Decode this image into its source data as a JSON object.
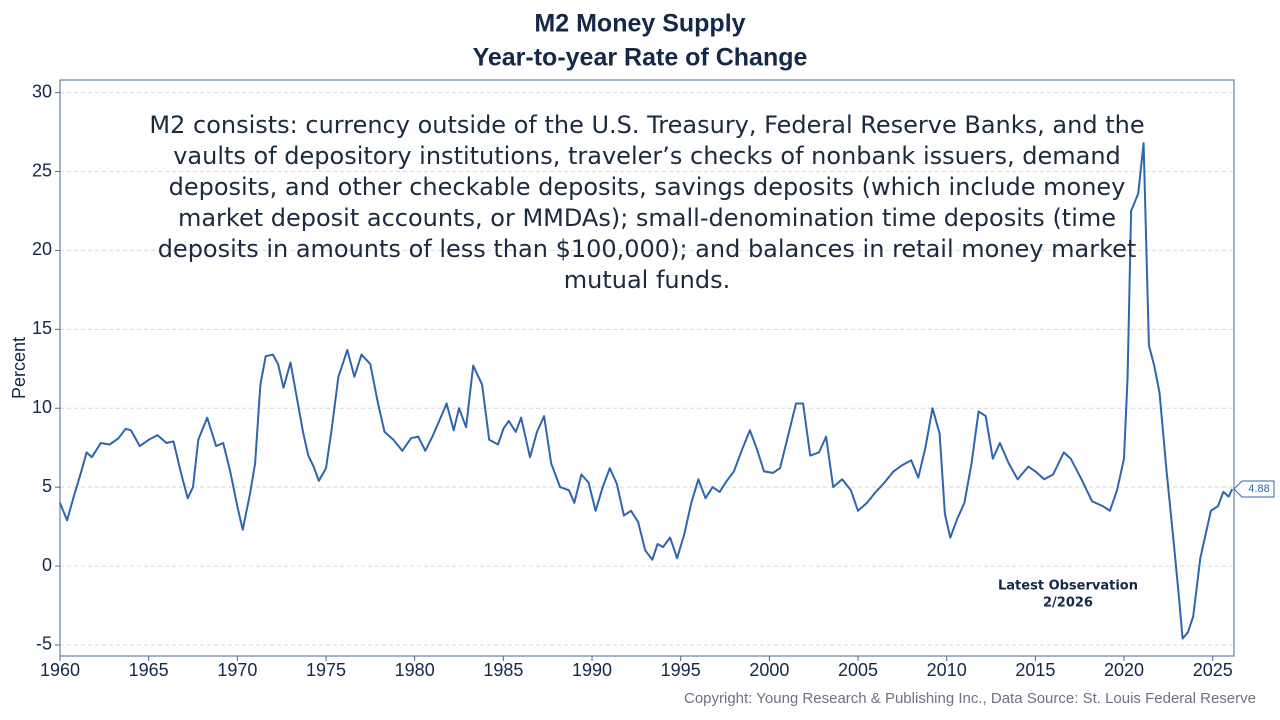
{
  "chart_data": {
    "type": "line",
    "title": "M2 Money Supply",
    "subtitle": "Year-to-year Rate of Change",
    "ylabel": "Percent",
    "annotation": [
      "M2 consists: currency outside of the U.S. Treasury, Federal Reserve Banks, and the",
      "vaults of depository institutions, traveler’s checks of nonbank issuers, demand",
      "deposits, and other checkable deposits, savings deposits (which include money",
      "market deposit accounts, or MMDAs); small-denomination time deposits (time",
      "deposits in amounts of less than $100,000); and balances in retail money market",
      "mutual funds."
    ],
    "latest_note": [
      "Latest Observation",
      "2/2026"
    ],
    "source": "Copyright: Young Research & Publishing Inc., Data Source: St. Louis Federal Reserve",
    "xlim": [
      1960,
      2026.2
    ],
    "ylim": [
      -5.7,
      30.8
    ],
    "xticks": [
      1960,
      1965,
      1970,
      1975,
      1980,
      1985,
      1990,
      1995,
      2000,
      2005,
      2010,
      2015,
      2020,
      2025
    ],
    "yticks": [
      -5,
      0,
      5,
      10,
      15,
      20,
      25,
      30
    ],
    "grid": true,
    "x": [
      1960.0,
      1960.4,
      1960.8,
      1961.2,
      1961.5,
      1961.8,
      1962.3,
      1962.8,
      1963.3,
      1963.7,
      1964.0,
      1964.5,
      1965.0,
      1965.5,
      1966.0,
      1966.4,
      1966.8,
      1967.2,
      1967.5,
      1967.8,
      1968.3,
      1968.8,
      1969.2,
      1969.6,
      1970.0,
      1970.3,
      1970.7,
      1971.0,
      1971.3,
      1971.6,
      1972.0,
      1972.3,
      1972.6,
      1973.0,
      1973.3,
      1973.7,
      1974.0,
      1974.3,
      1974.6,
      1975.0,
      1975.3,
      1975.7,
      1976.0,
      1976.2,
      1976.6,
      1977.0,
      1977.5,
      1977.9,
      1978.3,
      1978.8,
      1979.3,
      1979.8,
      1980.2,
      1980.6,
      1981.0,
      1981.5,
      1981.8,
      1982.2,
      1982.5,
      1982.9,
      1983.3,
      1983.8,
      1984.2,
      1984.7,
      1985.0,
      1985.3,
      1985.7,
      1986.0,
      1986.5,
      1986.9,
      1987.3,
      1987.7,
      1988.2,
      1988.7,
      1989.0,
      1989.4,
      1989.8,
      1990.2,
      1990.6,
      1991.0,
      1991.4,
      1991.8,
      1992.2,
      1992.6,
      1993.0,
      1993.4,
      1993.7,
      1994.0,
      1994.4,
      1994.8,
      1995.2,
      1995.6,
      1996.0,
      1996.4,
      1996.8,
      1997.2,
      1997.6,
      1998.0,
      1998.5,
      1998.9,
      1999.3,
      1999.7,
      2000.2,
      2000.6,
      2001.0,
      2001.5,
      2001.9,
      2002.3,
      2002.8,
      2003.2,
      2003.6,
      2004.1,
      2004.6,
      2005.0,
      2005.5,
      2006.0,
      2006.5,
      2007.0,
      2007.5,
      2008.0,
      2008.4,
      2008.8,
      2009.2,
      2009.6,
      2009.9,
      2010.2,
      2010.6,
      2011.0,
      2011.4,
      2011.8,
      2012.2,
      2012.6,
      2013.0,
      2013.5,
      2014.0,
      2014.6,
      2015.0,
      2015.5,
      2016.0,
      2016.6,
      2017.0,
      2017.6,
      2018.2,
      2018.8,
      2019.2,
      2019.6,
      2020.0,
      2020.2,
      2020.4,
      2020.8,
      2021.1,
      2021.4,
      2021.7,
      2022.0,
      2022.4,
      2022.8,
      2023.1,
      2023.3,
      2023.6,
      2023.9,
      2024.3,
      2024.6,
      2024.9,
      2025.3,
      2025.6,
      2025.9,
      2026.1
    ],
    "series": [
      {
        "color": "#2f65ae",
        "values": [
          4.0,
          2.9,
          4.5,
          6.0,
          7.2,
          6.9,
          7.8,
          7.7,
          8.1,
          8.7,
          8.6,
          7.6,
          8.0,
          8.3,
          7.8,
          7.9,
          6.0,
          4.3,
          5.0,
          8.0,
          9.4,
          7.6,
          7.8,
          6.0,
          3.8,
          2.3,
          4.5,
          6.5,
          11.5,
          13.3,
          13.4,
          12.8,
          11.3,
          12.9,
          11.0,
          8.5,
          7.0,
          6.3,
          5.4,
          6.2,
          8.5,
          12.0,
          13.0,
          13.7,
          12.0,
          13.4,
          12.8,
          10.5,
          8.5,
          8.0,
          7.3,
          8.1,
          8.2,
          7.3,
          8.2,
          9.5,
          10.3,
          8.6,
          10.0,
          8.8,
          12.7,
          11.5,
          8.0,
          7.7,
          8.7,
          9.2,
          8.5,
          9.4,
          6.9,
          8.5,
          9.5,
          6.5,
          5.0,
          4.8,
          4.0,
          5.8,
          5.3,
          3.5,
          5.0,
          6.2,
          5.2,
          3.2,
          3.5,
          2.8,
          1.0,
          0.4,
          1.4,
          1.2,
          1.8,
          0.5,
          2.0,
          4.0,
          5.5,
          4.3,
          5.0,
          4.7,
          5.4,
          6.0,
          7.5,
          8.6,
          7.4,
          6.0,
          5.9,
          6.2,
          8.0,
          10.3,
          10.3,
          7.0,
          7.2,
          8.2,
          5.0,
          5.5,
          4.8,
          3.5,
          4.0,
          4.7,
          5.3,
          6.0,
          6.4,
          6.7,
          5.6,
          7.5,
          10.0,
          8.4,
          3.3,
          1.8,
          3.0,
          4.0,
          6.5,
          9.8,
          9.5,
          6.8,
          7.8,
          6.5,
          5.5,
          6.3,
          6.0,
          5.5,
          5.8,
          7.2,
          6.8,
          5.5,
          4.1,
          3.8,
          3.5,
          4.8,
          6.8,
          12.0,
          22.5,
          23.6,
          26.8,
          14.0,
          12.7,
          11.0,
          6.0,
          1.5,
          -2.0,
          -4.6,
          -4.2,
          -3.2,
          0.5,
          2.0,
          3.5,
          3.8,
          4.7,
          4.4,
          4.88
        ]
      }
    ]
  }
}
